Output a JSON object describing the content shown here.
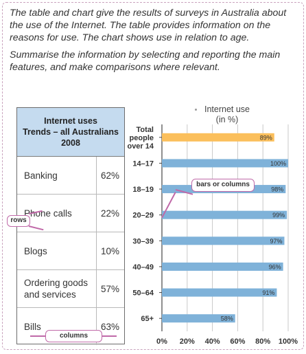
{
  "prompt": {
    "paragraph1": "The table and chart give the results of surveys in Australia about the use of the Internet. The table provides information on the reasons for use. The chart shows use in relation to age.",
    "paragraph2": "Summarise the information by selecting and reporting the main features, and make comparisons where relevant."
  },
  "table": {
    "heading_lines": [
      "Internet uses",
      "Trends – all Australians",
      "2008"
    ],
    "rows": [
      {
        "label": "Banking",
        "value": "62%"
      },
      {
        "label": "Phone calls",
        "value": "22%"
      },
      {
        "label": "Blogs",
        "value": "10%"
      },
      {
        "label": "Ordering goods and services",
        "value": "57%"
      },
      {
        "label": "Bills",
        "value": "63%"
      }
    ]
  },
  "callouts": {
    "rows": "rows",
    "columns": "columns",
    "bars": "bars or columns"
  },
  "colors": {
    "bar": "#7fb2d9",
    "highlight_bar": "#fbbf5c",
    "table_header": "#c5dbef",
    "callout_border": "#c069a8"
  },
  "chart_data": {
    "type": "bar",
    "orientation": "horizontal",
    "title": "Internet use (in %)",
    "title_lines": [
      "Internet use",
      "(in %)"
    ],
    "categories": [
      [
        "Total",
        "people",
        "over 14"
      ],
      [
        "14–17"
      ],
      [
        "18–19"
      ],
      [
        "20–29"
      ],
      [
        "30–39"
      ],
      [
        "40–49"
      ],
      [
        "50–64"
      ],
      [
        "65+"
      ]
    ],
    "values": [
      89,
      100,
      98,
      99,
      97,
      96,
      91,
      58
    ],
    "value_labels": [
      "89%",
      "100%",
      "98%",
      "99%",
      "97%",
      "96%",
      "91%",
      "58%"
    ],
    "highlight_index": 0,
    "xlim": [
      0,
      100
    ],
    "xticks": [
      "0%",
      "20%",
      "40%",
      "60%",
      "80%",
      "100%"
    ],
    "grid": "vertical"
  }
}
